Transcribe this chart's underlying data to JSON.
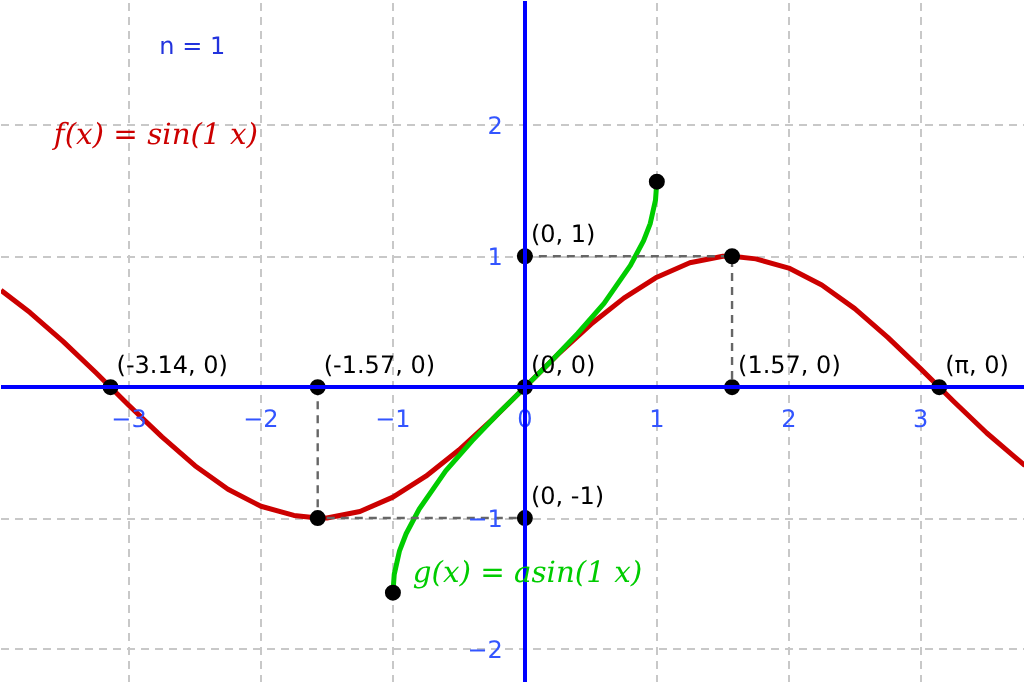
{
  "chart_data": {
    "type": "line",
    "xlim": [
      -3.97,
      3.79
    ],
    "ylim": [
      -2.26,
      2.95
    ],
    "xticks": [
      {
        "value": -3,
        "label": "−3"
      },
      {
        "value": -2,
        "label": "−2"
      },
      {
        "value": -1,
        "label": "−1"
      },
      0,
      1,
      2,
      3
    ],
    "yticks": [
      {
        "value": -2,
        "label": "−2"
      },
      {
        "value": -1,
        "label": "−1"
      },
      1,
      2
    ],
    "grid": true,
    "line_style": "solid",
    "series": [
      {
        "name": "f(x) = sin(1 x)",
        "color": "#cc0000",
        "x": [
          -3.97,
          -3.75,
          -3.5,
          -3.25,
          -3,
          -2.75,
          -2.5,
          -2.25,
          -2,
          -1.75,
          -1.57,
          -1.5,
          -1.25,
          -1,
          -0.75,
          -0.5,
          -0.25,
          0,
          0.25,
          0.5,
          0.75,
          1,
          1.25,
          1.5,
          1.57,
          1.75,
          2,
          2.25,
          2.5,
          2.75,
          3,
          3.25,
          3.5,
          3.79
        ],
        "values": [
          0.74,
          0.57,
          0.35,
          0.11,
          -0.14,
          -0.38,
          -0.6,
          -0.78,
          -0.91,
          -0.98,
          -1,
          -1,
          -0.95,
          -0.84,
          -0.68,
          -0.48,
          -0.25,
          0,
          0.25,
          0.48,
          0.68,
          0.84,
          0.95,
          1,
          1,
          0.98,
          0.91,
          0.78,
          0.6,
          0.38,
          0.14,
          -0.11,
          -0.35,
          -0.6
        ]
      },
      {
        "name": "g(x) = asin(1 x)",
        "color": "#00cc00",
        "x": [
          -1,
          -0.99,
          -0.95,
          -0.9,
          -0.8,
          -0.6,
          -0.4,
          -0.2,
          0,
          0.2,
          0.4,
          0.6,
          0.8,
          0.9,
          0.95,
          0.99,
          1
        ],
        "values": [
          -1.57,
          -1.43,
          -1.25,
          -1.12,
          -0.93,
          -0.64,
          -0.41,
          -0.2,
          0,
          0.2,
          0.41,
          0.64,
          0.93,
          1.12,
          1.25,
          1.43,
          1.57
        ]
      },
      {
        "color": "#666666",
        "line_style": "dashed",
        "x": [
          -1.57,
          -1.57,
          0
        ],
        "values": [
          0,
          -1,
          -1
        ]
      },
      {
        "color": "#666666",
        "line_style": "dashed",
        "x": [
          0,
          1.57,
          1.57
        ],
        "values": [
          1,
          1,
          0
        ]
      },
      {
        "type": "scatter",
        "marker": "circle",
        "color": "#000000",
        "x": [
          -3.14,
          -1.57,
          0,
          1.57,
          3.14,
          -1.57,
          1.57,
          0,
          0,
          1,
          -1
        ],
        "values": [
          0,
          0,
          0,
          0,
          0,
          -1,
          1,
          1,
          -1,
          1.57,
          -1.57
        ]
      }
    ],
    "annotations": [
      "n = 1",
      {
        "text": "(-3.14, 0)",
        "x": -3.14,
        "y": 0
      },
      {
        "text": "(-1.57, 0)",
        "x": -1.57,
        "y": 0
      },
      {
        "text": "(0, 0)",
        "x": 0,
        "y": 0
      },
      {
        "text": "(1.57, 0)",
        "x": 1.57,
        "y": 0
      },
      {
        "text": "(π, 0)",
        "x": 3.14,
        "y": 0
      },
      {
        "text": "(0, 1)",
        "x": 0,
        "y": 1
      },
      {
        "text": "(0, -1)",
        "x": 0,
        "y": -1
      }
    ]
  }
}
